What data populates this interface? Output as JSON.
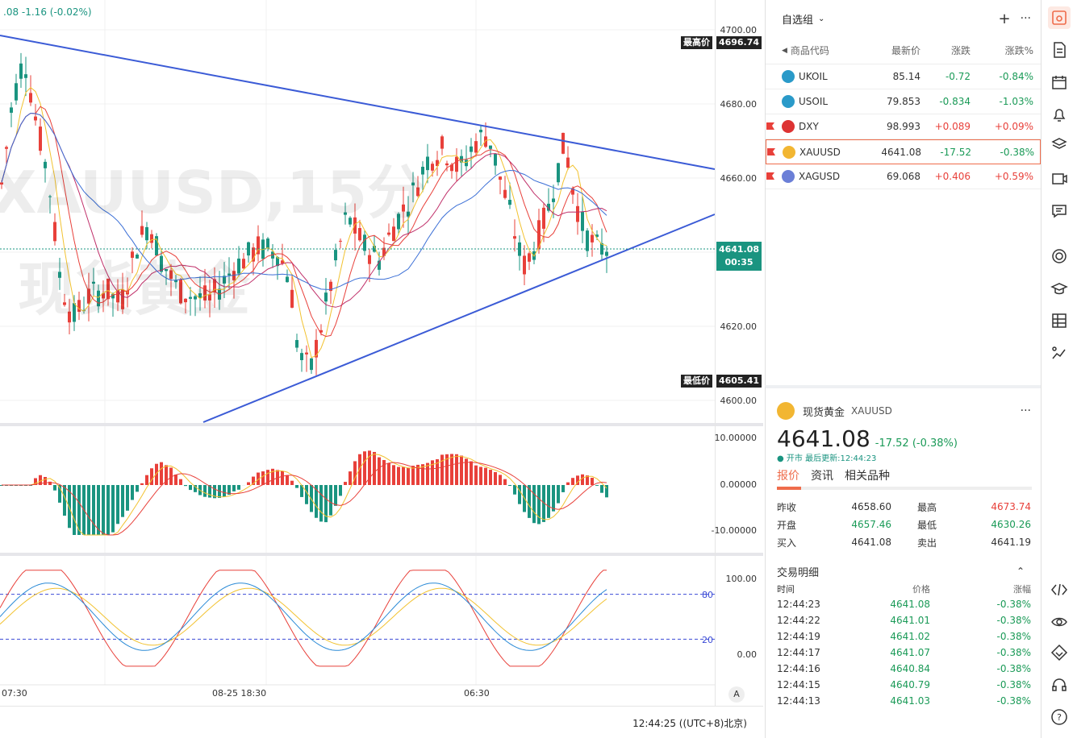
{
  "chart": {
    "legend": ".08  -1.16 (-0.02%)",
    "watermark_line1": "XAUUSD,15分",
    "watermark_line2": "现货黄金",
    "high_label": "最高价",
    "high_value": "4696.74",
    "low_label": "最低价",
    "low_value": "4605.41",
    "last_price": "4641.08",
    "countdown": "00:35",
    "price_ticks": [
      "4700.00",
      "4680.00",
      "4660.00",
      "4640.00",
      "4620.00",
      "4600.00"
    ],
    "macd_ticks": [
      "10.00000",
      "0.00000",
      "-10.00000"
    ],
    "kdj_ticks": [
      "100.00",
      "0.00"
    ],
    "kdj_levels": [
      "80",
      "20"
    ],
    "x_ticks": [
      "07:30",
      "08-25 18:30",
      "06:30"
    ],
    "auto_label": "A",
    "clock": "12:44:25 ((UTC+8)北京)"
  },
  "watchlist": {
    "title": "自选组",
    "columns": {
      "symbol": "商品代码",
      "last": "最新价",
      "change": "涨跌",
      "pct": "涨跌%"
    },
    "rows": [
      {
        "symbol": "UKOIL",
        "last": "85.14",
        "change": "-0.72",
        "pct": "-0.84%",
        "dir": "dn",
        "icon": "oil-icon",
        "flag": false
      },
      {
        "symbol": "USOIL",
        "last": "79.853",
        "change": "-0.834",
        "pct": "-1.03%",
        "dir": "dn",
        "icon": "oil-icon",
        "flag": false
      },
      {
        "symbol": "DXY",
        "last": "98.993",
        "change": "+0.089",
        "pct": "+0.09%",
        "dir": "up",
        "icon": "us-flag-icon",
        "flag": true
      },
      {
        "symbol": "XAUUSD",
        "last": "4641.08",
        "change": "-17.52",
        "pct": "-0.38%",
        "dir": "dn",
        "icon": "gold-icon",
        "flag": true
      },
      {
        "symbol": "XAGUSD",
        "last": "69.068",
        "change": "+0.406",
        "pct": "+0.59%",
        "dir": "up",
        "icon": "silver-icon",
        "flag": true
      }
    ]
  },
  "quote": {
    "name": "现货黄金",
    "symbol": "XAUUSD",
    "price": "4641.08",
    "change": "-17.52 (-0.38%)",
    "status": "● 开市  最后更新:12:44:23",
    "tabs": [
      "报价",
      "资讯",
      "相关品种"
    ],
    "stats": [
      {
        "k": "昨收",
        "v": "4658.60",
        "k2": "最高",
        "v2": "4673.74",
        "c2": "up"
      },
      {
        "k": "开盘",
        "v": "4657.46",
        "k2": "最低",
        "v2": "4630.26",
        "c2": "dn"
      },
      {
        "k": "买入",
        "v": "4641.08",
        "k2": "卖出",
        "v2": "4641.19",
        "c2": ""
      }
    ],
    "trades_title": "交易明细",
    "trades_cols": {
      "time": "时间",
      "price": "价格",
      "pct": "涨幅"
    },
    "trades": [
      {
        "time": "12:44:23",
        "price": "4641.08",
        "pct": "-0.38%"
      },
      {
        "time": "12:44:22",
        "price": "4641.01",
        "pct": "-0.38%"
      },
      {
        "time": "12:44:19",
        "price": "4641.02",
        "pct": "-0.38%"
      },
      {
        "time": "12:44:17",
        "price": "4641.07",
        "pct": "-0.38%"
      },
      {
        "time": "12:44:16",
        "price": "4640.84",
        "pct": "-0.38%"
      },
      {
        "time": "12:44:15",
        "price": "4640.79",
        "pct": "-0.38%"
      },
      {
        "time": "12:44:13",
        "price": "4641.03",
        "pct": "-0.38%"
      }
    ]
  },
  "toolbar": [
    "alert-icon",
    "document-icon",
    "calendar-icon",
    "bell-icon",
    "layers-icon",
    "screen-icon",
    "chat-icon",
    "target-icon",
    "graduation-icon",
    "table-icon",
    "stock-icon",
    "code-icon",
    "eye-icon",
    "diamond-icon",
    "headset-icon",
    "help-icon"
  ]
}
